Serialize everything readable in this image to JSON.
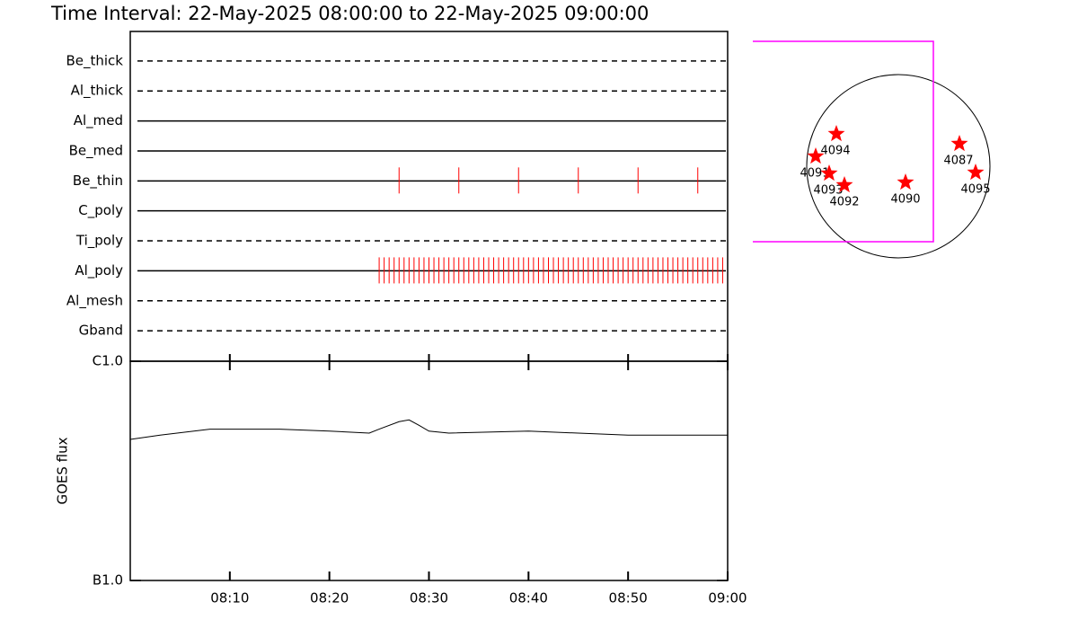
{
  "title": "Time Interval: 22-May-2025 08:00:00 to 22-May-2025 09:00:00",
  "chart_data": [
    {
      "type": "timeline",
      "categories": [
        "Be_thick",
        "Al_thick",
        "Al_med",
        "Be_med",
        "Be_thin",
        "C_poly",
        "Ti_poly",
        "Al_poly",
        "Al_mesh",
        "Gband"
      ],
      "line_styles": [
        "dashed",
        "dashed",
        "solid",
        "solid",
        "solid",
        "solid",
        "dashed",
        "solid",
        "dashed",
        "dashed"
      ],
      "events": [
        [],
        [],
        [],
        [],
        [
          "08:27:00",
          "08:33:00",
          "08:39:00",
          "08:45:00",
          "08:51:00",
          "08:57:00"
        ],
        [],
        [],
        [
          "08:25:00",
          "08:25:30",
          "08:26:00",
          "08:26:30",
          "08:27:00",
          "08:27:30",
          "08:28:00",
          "08:28:30",
          "08:29:00",
          "08:29:30",
          "08:30:00",
          "08:30:30",
          "08:31:00",
          "08:31:30",
          "08:32:00",
          "08:32:30",
          "08:33:00",
          "08:33:30",
          "08:34:00",
          "08:34:30",
          "08:35:00",
          "08:35:30",
          "08:36:00",
          "08:36:30",
          "08:37:00",
          "08:37:30",
          "08:38:00",
          "08:38:30",
          "08:39:00",
          "08:39:30",
          "08:40:00",
          "08:40:30",
          "08:41:00",
          "08:41:30",
          "08:42:00",
          "08:42:30",
          "08:43:00",
          "08:43:30",
          "08:44:00",
          "08:44:30",
          "08:45:00",
          "08:45:30",
          "08:46:00",
          "08:46:30",
          "08:47:00",
          "08:47:30",
          "08:48:00",
          "08:48:30",
          "08:49:00",
          "08:49:30",
          "08:50:00",
          "08:50:30",
          "08:51:00",
          "08:51:30",
          "08:52:00",
          "08:52:30",
          "08:53:00",
          "08:53:30",
          "08:54:00",
          "08:54:30",
          "08:55:00",
          "08:55:30",
          "08:56:00",
          "08:56:30",
          "08:57:00",
          "08:57:30",
          "08:58:00",
          "08:58:30",
          "08:59:00",
          "08:59:30"
        ],
        [],
        []
      ],
      "color": "#ff0000",
      "xlim": [
        "08:00",
        "09:00"
      ],
      "xticks": [
        "08:10",
        "08:20",
        "08:30",
        "08:40",
        "08:50",
        "09:00"
      ]
    },
    {
      "type": "line",
      "ylabel": "GOES flux",
      "x": [
        "08:00",
        "08:03",
        "08:08",
        "08:15",
        "08:20",
        "08:24",
        "08:25",
        "08:27",
        "08:28",
        "08:29",
        "08:30",
        "08:32",
        "08:40",
        "08:45",
        "08:50",
        "09:00"
      ],
      "values": [
        4.4e-07,
        4.6e-07,
        4.9e-07,
        4.9e-07,
        4.8e-07,
        4.7e-07,
        4.9e-07,
        5.3e-07,
        5.4e-07,
        5.1e-07,
        4.8e-07,
        4.7e-07,
        4.8e-07,
        4.7e-07,
        4.6e-07,
        4.6e-07
      ],
      "color": "#000000",
      "log_scale": true,
      "ylim": [
        1e-07,
        1e-06
      ],
      "yticks": [
        {
          "value": 1e-07,
          "label": "B1.0"
        },
        {
          "value": 1e-06,
          "label": "C1.0"
        }
      ],
      "xlim": [
        "08:00",
        "09:00"
      ],
      "xticks": [
        "08:10",
        "08:20",
        "08:30",
        "08:40",
        "08:50",
        "09:00"
      ]
    }
  ],
  "map": {
    "regions": [
      "4094",
      "4091",
      "4093",
      "4092",
      "4090",
      "4087",
      "4095"
    ],
    "color": "#ff0000",
    "box_color": "#ff00ff"
  }
}
